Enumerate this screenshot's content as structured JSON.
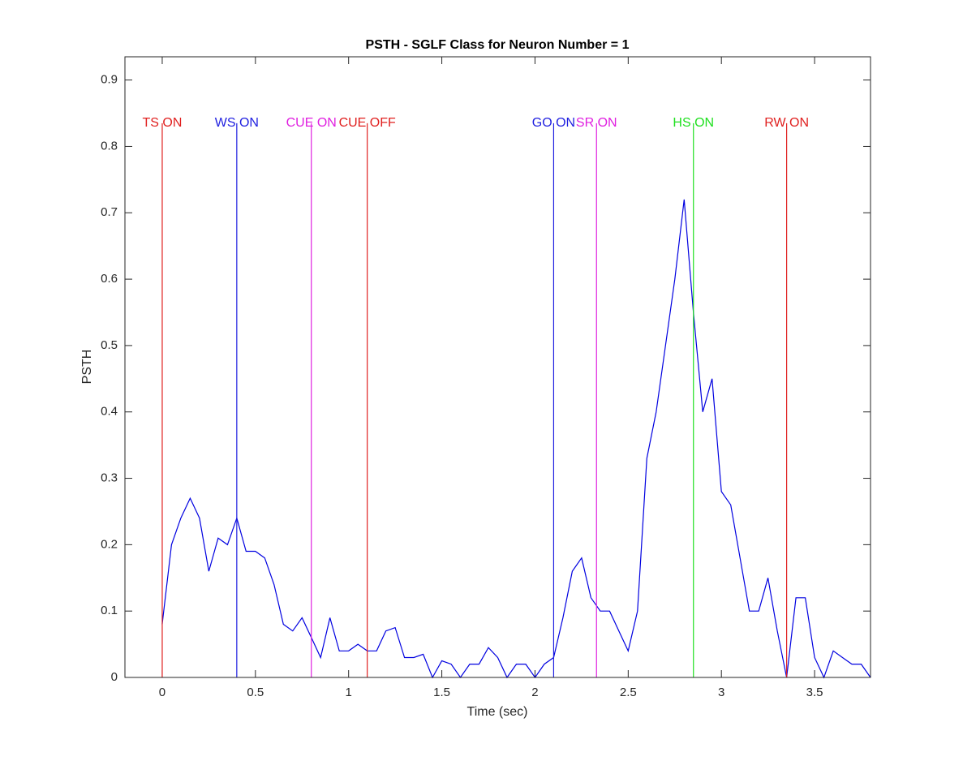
{
  "chart_data": {
    "type": "line",
    "title": "PSTH - SGLF Class for Neuron Number = 1",
    "xlabel": "Time (sec)",
    "ylabel": "PSTH",
    "x": [
      0,
      0.05,
      0.1,
      0.15,
      0.2,
      0.25,
      0.3,
      0.35,
      0.4,
      0.45,
      0.5,
      0.55,
      0.6,
      0.65,
      0.7,
      0.75,
      0.8,
      0.85,
      0.9,
      0.95,
      1.0,
      1.05,
      1.1,
      1.15,
      1.2,
      1.25,
      1.3,
      1.35,
      1.4,
      1.45,
      1.5,
      1.55,
      1.6,
      1.65,
      1.7,
      1.75,
      1.8,
      1.85,
      1.9,
      1.95,
      2.0,
      2.05,
      2.1,
      2.15,
      2.2,
      2.25,
      2.3,
      2.35,
      2.4,
      2.45,
      2.5,
      2.55,
      2.6,
      2.65,
      2.7,
      2.75,
      2.8,
      2.85,
      2.9,
      2.95,
      3.0,
      3.05,
      3.1,
      3.15,
      3.2,
      3.25,
      3.3,
      3.35,
      3.4,
      3.45,
      3.5,
      3.55,
      3.6,
      3.65,
      3.7,
      3.75,
      3.8
    ],
    "values": [
      0.08,
      0.2,
      0.24,
      0.27,
      0.24,
      0.16,
      0.21,
      0.2,
      0.24,
      0.19,
      0.19,
      0.18,
      0.14,
      0.08,
      0.07,
      0.09,
      0.06,
      0.03,
      0.09,
      0.04,
      0.04,
      0.05,
      0.04,
      0.04,
      0.07,
      0.075,
      0.03,
      0.03,
      0.035,
      0.0,
      0.025,
      0.02,
      0.0,
      0.02,
      0.02,
      0.045,
      0.03,
      0.0,
      0.02,
      0.02,
      0.0,
      0.02,
      0.03,
      0.09,
      0.16,
      0.18,
      0.12,
      0.1,
      0.1,
      0.07,
      0.04,
      0.1,
      0.33,
      0.4,
      0.5,
      0.6,
      0.72,
      0.55,
      0.4,
      0.45,
      0.28,
      0.26,
      0.18,
      0.1,
      0.1,
      0.15,
      0.07,
      0.0,
      0.12,
      0.12,
      0.03,
      0.0,
      0.04,
      0.03,
      0.02,
      0.02,
      0.0
    ],
    "color": "#0000e0",
    "events": [
      {
        "label": "TS ON",
        "x": 0,
        "color": "#e0201f"
      },
      {
        "label": "WS ON",
        "x": 0.4,
        "color": "#1f1fe0"
      },
      {
        "label": "CUE ON",
        "x": 0.8,
        "color": "#e020e0"
      },
      {
        "label": "CUE OFF",
        "x": 1.1,
        "color": "#e0201f"
      },
      {
        "label": "GO ON",
        "x": 2.1,
        "color": "#1f1fe0"
      },
      {
        "label": "SR ON",
        "x": 2.33,
        "color": "#e020e0"
      },
      {
        "label": "HS ON",
        "x": 2.85,
        "color": "#20e020"
      },
      {
        "label": "RW ON",
        "x": 3.35,
        "color": "#e0201f"
      }
    ],
    "event_label_y": 0.835,
    "xlim": [
      -0.2,
      3.8
    ],
    "ylim": [
      0,
      0.935
    ],
    "xticks": [
      0,
      0.5,
      1,
      1.5,
      2,
      2.5,
      3,
      3.5
    ],
    "yticks": [
      0,
      0.1,
      0.2,
      0.3,
      0.4,
      0.5,
      0.6,
      0.7,
      0.8,
      0.9
    ]
  }
}
